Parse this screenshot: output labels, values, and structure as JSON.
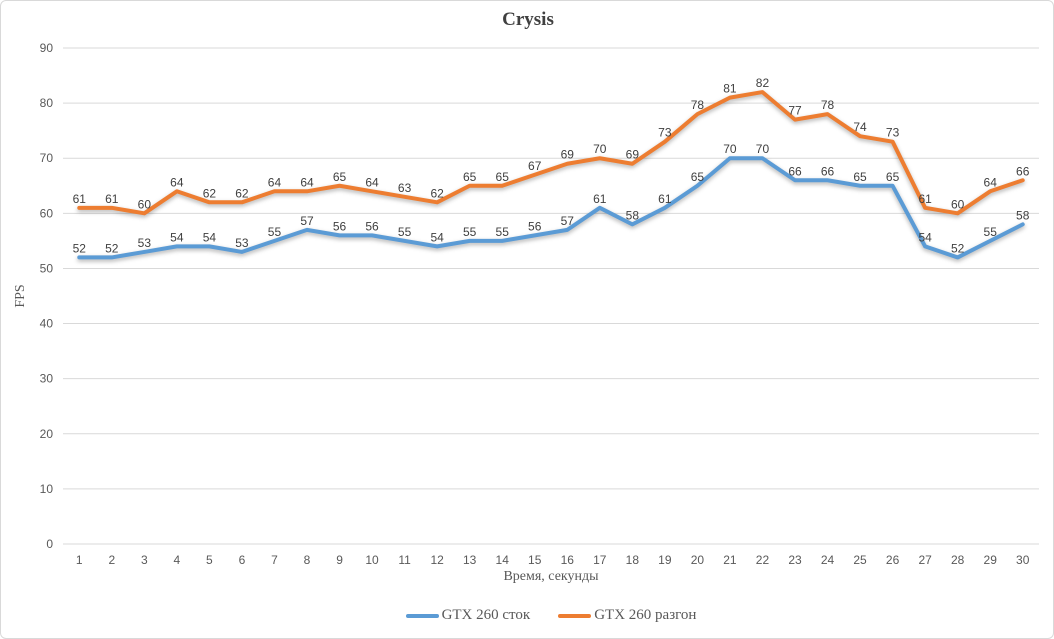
{
  "chart_data": {
    "type": "line",
    "title": "Crysis",
    "xlabel": "Время, секунды",
    "ylabel": "FPS",
    "categories": [
      "1",
      "2",
      "3",
      "4",
      "5",
      "6",
      "7",
      "8",
      "9",
      "10",
      "11",
      "12",
      "13",
      "14",
      "15",
      "16",
      "17",
      "18",
      "19",
      "20",
      "21",
      "22",
      "23",
      "24",
      "25",
      "26",
      "27",
      "28",
      "29",
      "30"
    ],
    "series": [
      {
        "name": "GTX 260 сток",
        "color": "#5B9BD5",
        "values": [
          52,
          52,
          53,
          54,
          54,
          53,
          55,
          57,
          56,
          56,
          55,
          54,
          55,
          55,
          56,
          57,
          61,
          58,
          61,
          65,
          70,
          70,
          66,
          66,
          65,
          65,
          54,
          52,
          55,
          58
        ]
      },
      {
        "name": "GTX 260 разгон",
        "color": "#ED7D31",
        "values": [
          61,
          61,
          60,
          64,
          62,
          62,
          64,
          64,
          65,
          64,
          63,
          62,
          65,
          65,
          67,
          69,
          70,
          69,
          73,
          78,
          81,
          82,
          77,
          78,
          74,
          73,
          61,
          60,
          64,
          66
        ]
      }
    ],
    "ylim": [
      0,
      90
    ],
    "ytick_step": 10,
    "grid": true,
    "legend_position": "bottom",
    "data_labels": true
  },
  "palette": {
    "gridline": "#D9D9D9",
    "tick_text": "#595959",
    "data_label_text": "#404040",
    "title_text": "#404040",
    "border": "#D9D9D9",
    "background": "#FFFFFF"
  }
}
